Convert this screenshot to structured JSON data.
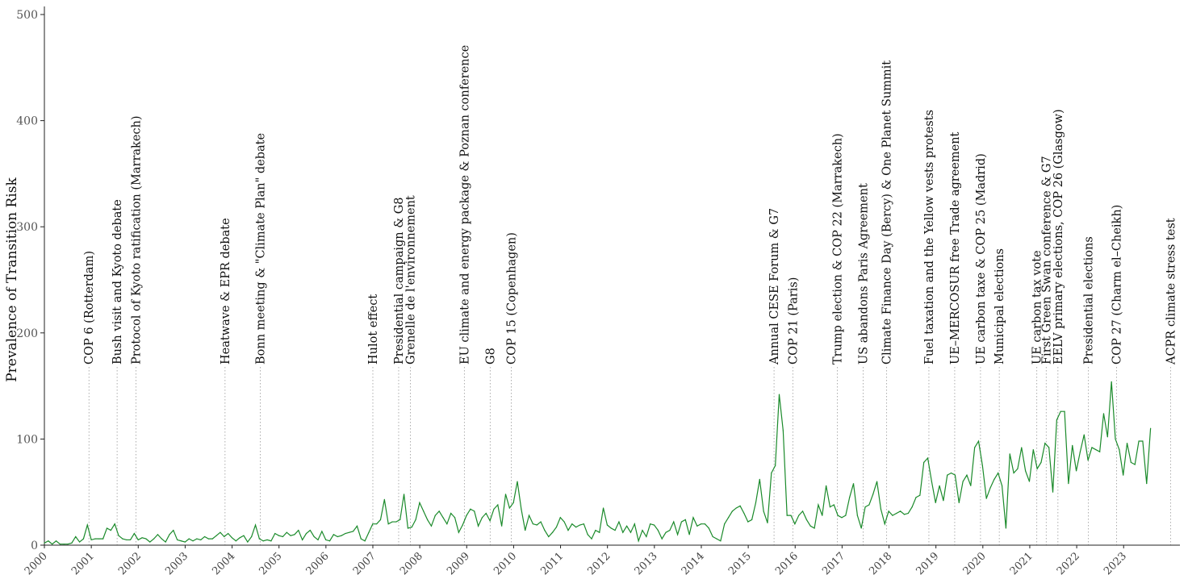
{
  "chart_data": {
    "type": "line",
    "ylabel": "Prevalence of Transition Risk",
    "xlabel": "",
    "ylim": [
      0,
      500
    ],
    "yticks": [
      0,
      100,
      200,
      300,
      400,
      500
    ],
    "xlim": [
      2000.0,
      2024.2
    ],
    "xticks": [
      "2000",
      "2001",
      "2002",
      "2003",
      "2004",
      "2005",
      "2006",
      "2007",
      "2008",
      "2009",
      "2010",
      "2011",
      "2012",
      "2013",
      "2014",
      "2015",
      "2016",
      "2017",
      "2018",
      "2019",
      "2020",
      "2021",
      "2022",
      "2023"
    ],
    "grid": false,
    "legend": "none",
    "line_color": "#1a8a2a",
    "series": [
      {
        "x_start": 2000.0,
        "step": 0.0833,
        "values": [
          2,
          4,
          1,
          4,
          1,
          1,
          1,
          2,
          8,
          3,
          6,
          19,
          5,
          6,
          6,
          6,
          16,
          14,
          20,
          9,
          6,
          5,
          5,
          11,
          5,
          7,
          6,
          3,
          6,
          10,
          6,
          3,
          10,
          14,
          5,
          4,
          3,
          6,
          4,
          6,
          5,
          8,
          6,
          6,
          9,
          12,
          8,
          11,
          7,
          4,
          7,
          9,
          3,
          8,
          19,
          6,
          4,
          5,
          4,
          11,
          9,
          8,
          12,
          9,
          10,
          14,
          5,
          11,
          14,
          8,
          5,
          13,
          5,
          4,
          10,
          8,
          9,
          11,
          12,
          13,
          18,
          6,
          4,
          12,
          20,
          20,
          24,
          43,
          20,
          22,
          22,
          24,
          48,
          16,
          17,
          24,
          40,
          32,
          24,
          18,
          28,
          32,
          26,
          20,
          30,
          26,
          12,
          19,
          28,
          34,
          32,
          18,
          26,
          30,
          23,
          34,
          38,
          18,
          48,
          35,
          40,
          60,
          34,
          14,
          28,
          20,
          19,
          22,
          14,
          8,
          12,
          17,
          26,
          22,
          14,
          20,
          17,
          19,
          20,
          10,
          6,
          14,
          12,
          35,
          19,
          16,
          14,
          22,
          12,
          18,
          12,
          20,
          4,
          14,
          8,
          20,
          19,
          14,
          6,
          12,
          14,
          22,
          10,
          22,
          24,
          10,
          26,
          18,
          20,
          20,
          16,
          8,
          6,
          4,
          20,
          26,
          32,
          35,
          37,
          30,
          22,
          24,
          40,
          62,
          32,
          21,
          68,
          75,
          142,
          108,
          28,
          28,
          20,
          28,
          32,
          24,
          18,
          16,
          38,
          28,
          56,
          36,
          38,
          28,
          26,
          28,
          45,
          58,
          28,
          16,
          36,
          38,
          48,
          60,
          34,
          20,
          32,
          28,
          30,
          32,
          29,
          30,
          36,
          45,
          47,
          78,
          82,
          60,
          40,
          56,
          42,
          66,
          68,
          66,
          40,
          60,
          66,
          56,
          92,
          98,
          75,
          44,
          54,
          62,
          68,
          56,
          16,
          86,
          68,
          72,
          92,
          70,
          60,
          90,
          72,
          78,
          96,
          92,
          50,
          118,
          126,
          126,
          58,
          94,
          70,
          88,
          104,
          80,
          92,
          90,
          88,
          124,
          102,
          154,
          100,
          90,
          66,
          96,
          78,
          76,
          98,
          98,
          58,
          110
        ]
      }
    ],
    "events": [
      {
        "date": 2000.95,
        "label": "COP 6 (Rotterdam)"
      },
      {
        "date": 2001.55,
        "label": "Bush visit and Kyoto debate"
      },
      {
        "date": 2001.95,
        "label": "Protocol of Kyoto ratification (Marrakech)"
      },
      {
        "date": 2003.85,
        "label": "Heatwave & EPR debate"
      },
      {
        "date": 2004.6,
        "label": "Bonn meeting & \"Climate Plan\" debate"
      },
      {
        "date": 2007.0,
        "label": "Hulot effect"
      },
      {
        "date": 2007.55,
        "label": "Presidential campaign & G8"
      },
      {
        "date": 2007.8,
        "label": "Grenelle de l'environnement"
      },
      {
        "date": 2008.95,
        "label": "EU climate and energy package & Poznan conference"
      },
      {
        "date": 2009.5,
        "label": "G8"
      },
      {
        "date": 2009.95,
        "label": "COP 15 (Copenhagen)"
      },
      {
        "date": 2015.55,
        "label": "Annual CESE Forum & G7"
      },
      {
        "date": 2015.95,
        "label": "COP 21 (Paris)"
      },
      {
        "date": 2016.9,
        "label": "Trump election & COP 22 (Marrakech)"
      },
      {
        "date": 2017.45,
        "label": "US abandons Paris Agreement"
      },
      {
        "date": 2017.95,
        "label": "Climate Finance Day (Bercy) & One Planet Summit"
      },
      {
        "date": 2018.85,
        "label": "Fuel taxation and the Yellow vests protests"
      },
      {
        "date": 2019.4,
        "label": "UE–MERCOSUR free Trade agreement"
      },
      {
        "date": 2019.95,
        "label": "UE carbon taxe & COP 25 (Madrid)"
      },
      {
        "date": 2020.35,
        "label": "Municipal elections"
      },
      {
        "date": 2021.15,
        "label": "UE carbon tax vote"
      },
      {
        "date": 2021.35,
        "label": "First Green Swan conference & G7"
      },
      {
        "date": 2021.6,
        "label": "EELV primary elections, COP 26 (Glasgow)"
      },
      {
        "date": 2022.25,
        "label": "Presidential elections"
      },
      {
        "date": 2022.85,
        "label": "COP 27 (Charm el–Cheikh)"
      },
      {
        "date": 2024.0,
        "label": "ACPR climate stress test"
      }
    ]
  }
}
